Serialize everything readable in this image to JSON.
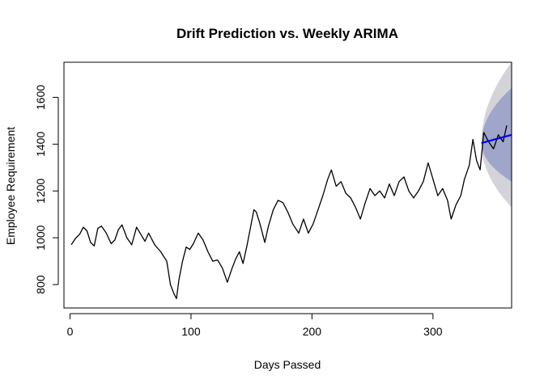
{
  "chart_data": {
    "type": "line",
    "title": "Drift Prediction vs. Weekly ARIMA",
    "xlabel": "Days Passed",
    "ylabel": "Employee Requirement",
    "xlim": [
      -5,
      365
    ],
    "ylim": [
      700,
      1750
    ],
    "x_ticks": [
      0,
      100,
      200,
      300
    ],
    "y_ticks": [
      800,
      1000,
      1200,
      1400,
      1600
    ],
    "grid": false,
    "legend": "none",
    "colors": {
      "observed": "#000000",
      "forecast_line": "#0000ff",
      "band_95": "#d3d3d9",
      "band_80": "#a0a5ca"
    },
    "series": [
      {
        "kind": "observed",
        "x": [
          1,
          5,
          8,
          11,
          14,
          17,
          20,
          23,
          26,
          30,
          34,
          37,
          40,
          43,
          47,
          51,
          55,
          59,
          62,
          65,
          70,
          75,
          80,
          83,
          86,
          88,
          90,
          93,
          96,
          99,
          102,
          106,
          110,
          114,
          118,
          122,
          126,
          130,
          134,
          137,
          140,
          143,
          146,
          149,
          152,
          154,
          157,
          161,
          164,
          168,
          172,
          176,
          180,
          184,
          189,
          193,
          197,
          201,
          205,
          209,
          213,
          216,
          220,
          224,
          228,
          232,
          236,
          240,
          244,
          248,
          252,
          256,
          260,
          264,
          268,
          272,
          276,
          280,
          284,
          288,
          292,
          296,
          300,
          304,
          308,
          312,
          315,
          319,
          323,
          326,
          330,
          333,
          336,
          339,
          342,
          346,
          350,
          354,
          358,
          361
        ],
        "y": [
          970,
          1000,
          1015,
          1045,
          1030,
          980,
          965,
          1040,
          1050,
          1020,
          975,
          990,
          1035,
          1055,
          1000,
          970,
          1045,
          1010,
          985,
          1020,
          970,
          940,
          900,
          800,
          760,
          740,
          820,
          900,
          960,
          950,
          975,
          1020,
          990,
          940,
          900,
          905,
          870,
          810,
          870,
          910,
          940,
          890,
          960,
          1040,
          1120,
          1110,
          1060,
          980,
          1050,
          1120,
          1160,
          1150,
          1110,
          1060,
          1020,
          1080,
          1020,
          1060,
          1120,
          1180,
          1250,
          1290,
          1220,
          1240,
          1190,
          1170,
          1130,
          1080,
          1150,
          1210,
          1180,
          1200,
          1170,
          1230,
          1180,
          1240,
          1260,
          1200,
          1170,
          1200,
          1240,
          1320,
          1250,
          1180,
          1210,
          1160,
          1080,
          1140,
          1180,
          1250,
          1310,
          1420,
          1330,
          1290,
          1450,
          1410,
          1380,
          1440,
          1410,
          1480
        ]
      },
      {
        "kind": "forecast",
        "x": [
          340,
          365
        ],
        "y": [
          1405,
          1440
        ],
        "lo80": [
          1405,
          1240
        ],
        "hi80": [
          1405,
          1640
        ],
        "lo95": [
          1405,
          1130
        ],
        "hi95": [
          1405,
          1750
        ]
      }
    ]
  }
}
